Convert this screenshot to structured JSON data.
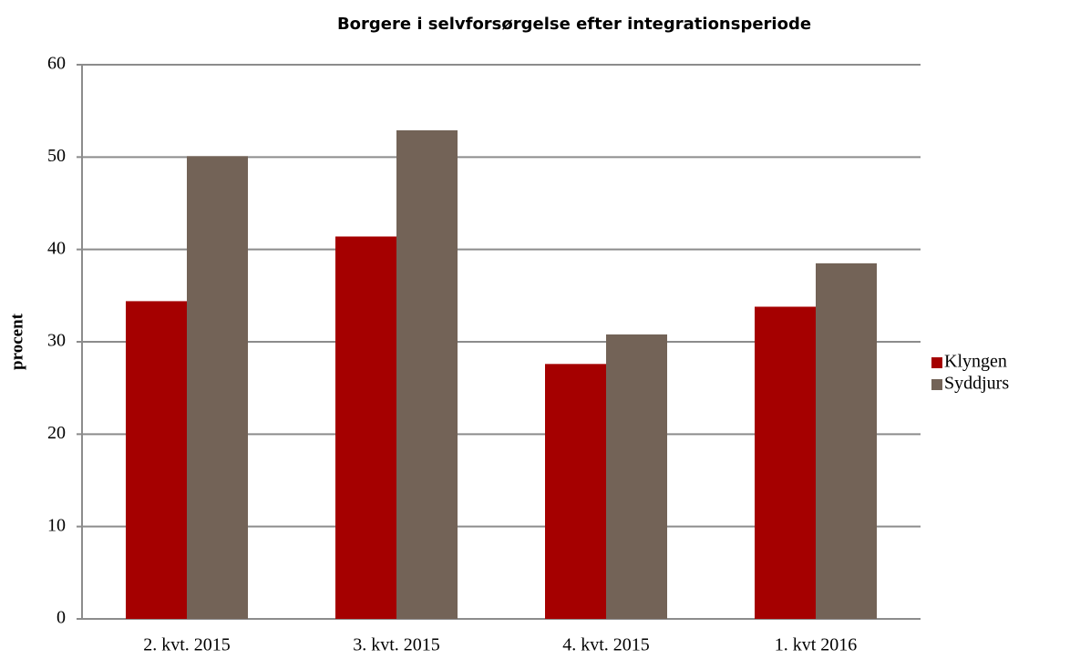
{
  "chart_data": {
    "type": "bar",
    "title": "Borgere i selvforsørgelse efter integrationsperiode",
    "y_label": "procent",
    "categories": [
      "2. kvt. 2015",
      "3. kvt. 2015",
      "4. kvt. 2015",
      "1. kvt 2016"
    ],
    "series": [
      {
        "name": "Klyngen",
        "color": "#a50000",
        "values": [
          34.4,
          41.4,
          27.6,
          33.8
        ]
      },
      {
        "name": "Syddjurs",
        "color": "#736357",
        "values": [
          50.1,
          52.9,
          30.8,
          38.5
        ]
      }
    ],
    "ylim": [
      0,
      60
    ],
    "yticks": [
      0,
      10,
      20,
      30,
      40,
      50,
      60
    ],
    "grid": true,
    "legend": "right"
  }
}
